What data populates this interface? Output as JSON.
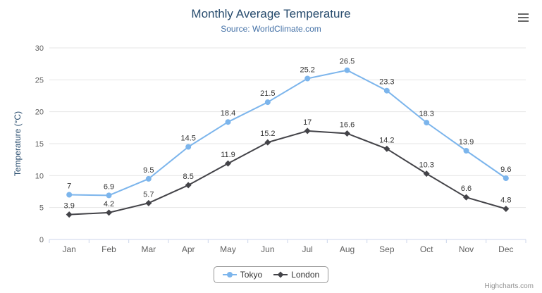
{
  "credits": "Highcharts.com",
  "icons": {
    "menu": "hamburger-menu-icon"
  },
  "chart_data": {
    "type": "line",
    "title": "Monthly Average Temperature",
    "subtitle": "Source: WorldClimate.com",
    "categories": [
      "Jan",
      "Feb",
      "Mar",
      "Apr",
      "May",
      "Jun",
      "Jul",
      "Aug",
      "Sep",
      "Oct",
      "Nov",
      "Dec"
    ],
    "xlabel": "",
    "ylabel": "Temperature (°C)",
    "ylim": [
      0,
      30
    ],
    "ytick_interval": 5,
    "grid": true,
    "legend_position": "bottom",
    "series": [
      {
        "name": "Tokyo",
        "color": "#7cb5ec",
        "marker": "circle",
        "values": [
          7,
          6.9,
          9.5,
          14.5,
          18.4,
          21.5,
          25.2,
          26.5,
          23.3,
          18.3,
          13.9,
          9.6
        ]
      },
      {
        "name": "London",
        "color": "#434348",
        "marker": "diamond",
        "values": [
          3.9,
          4.2,
          5.7,
          8.5,
          11.9,
          15.2,
          17,
          16.6,
          14.2,
          10.3,
          6.6,
          4.8
        ]
      }
    ]
  }
}
